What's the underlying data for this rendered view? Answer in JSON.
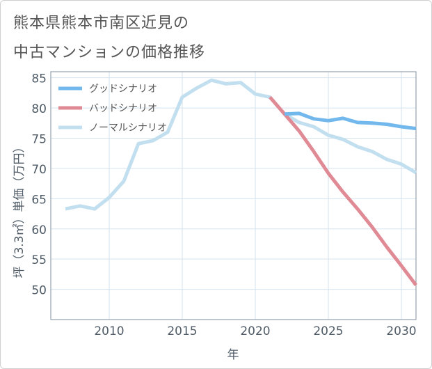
{
  "title": {
    "line1": "熊本県熊本市南区近見の",
    "line2": "中古マンションの価格推移"
  },
  "chart_data": {
    "type": "line",
    "xlabel": "年",
    "ylabel": "坪（3.3㎡）単価（万円）",
    "xlim": [
      2006,
      2031
    ],
    "ylim": [
      45,
      86
    ],
    "xticks": [
      2010,
      2015,
      2020,
      2025,
      2030
    ],
    "yticks": [
      50,
      55,
      60,
      65,
      70,
      75,
      80,
      85
    ],
    "grid": true,
    "legend_position": "top-left",
    "series": [
      {
        "name": "グッドシナリオ",
        "color": "#72b8ec",
        "x": [
          2022,
          2023,
          2024,
          2025,
          2026,
          2027,
          2028,
          2029,
          2030,
          2031
        ],
        "y": [
          79.0,
          79.1,
          78.2,
          77.9,
          78.3,
          77.6,
          77.5,
          77.3,
          76.9,
          76.6
        ]
      },
      {
        "name": "バッドシナリオ",
        "color": "#df8a94",
        "x": [
          2021,
          2022,
          2023,
          2024,
          2025,
          2026,
          2027,
          2028,
          2029,
          2030,
          2031
        ],
        "y": [
          81.8,
          79.0,
          76.2,
          72.8,
          69.2,
          66.1,
          63.3,
          60.3,
          57.0,
          53.9,
          50.7
        ]
      },
      {
        "name": "ノーマルシナリオ",
        "color": "#c2dff0",
        "x": [
          2007,
          2008,
          2009,
          2010,
          2011,
          2012,
          2013,
          2014,
          2015,
          2016,
          2017,
          2018,
          2019,
          2020,
          2021,
          2022,
          2023,
          2024,
          2025,
          2026,
          2027,
          2028,
          2029,
          2030,
          2031
        ],
        "y": [
          63.3,
          63.8,
          63.3,
          65.2,
          67.9,
          74.1,
          74.6,
          76.0,
          81.8,
          83.3,
          84.6,
          84.0,
          84.2,
          82.3,
          81.8,
          79.0,
          77.6,
          76.9,
          75.5,
          74.8,
          73.6,
          72.8,
          71.5,
          70.7,
          69.3
        ]
      }
    ]
  }
}
